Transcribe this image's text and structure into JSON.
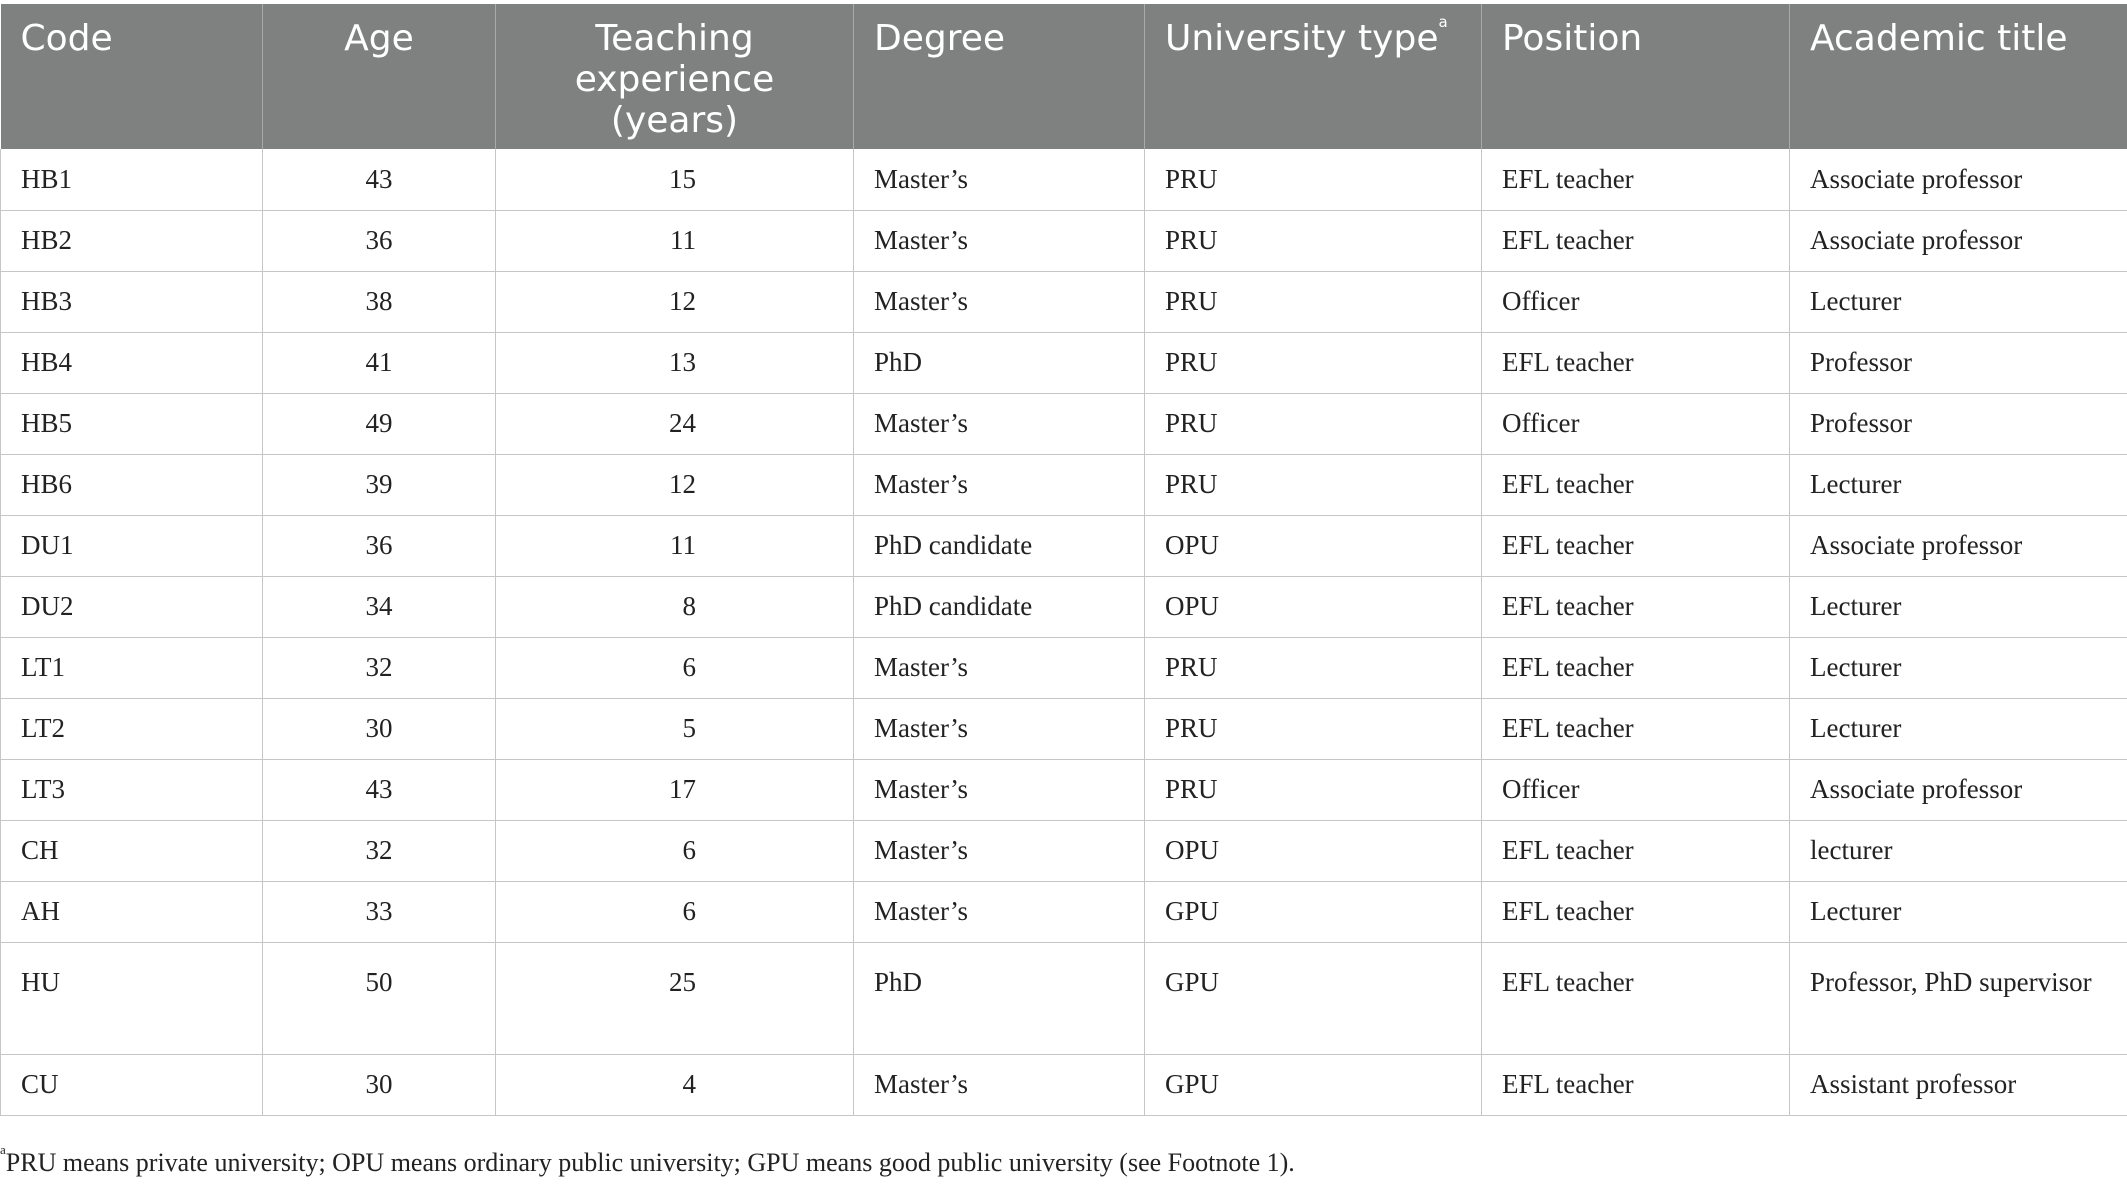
{
  "table": {
    "headers": [
      {
        "label": "Code",
        "sup": ""
      },
      {
        "label": "Age",
        "sup": ""
      },
      {
        "label": "Teaching experience (years)",
        "sup": ""
      },
      {
        "label": "Degree",
        "sup": ""
      },
      {
        "label": "University type",
        "sup": "a"
      },
      {
        "label": "Position",
        "sup": ""
      },
      {
        "label": "Academic title",
        "sup": ""
      }
    ],
    "rows": [
      [
        "HB1",
        "43",
        "15",
        "Master’s",
        "PRU",
        "EFL teacher",
        "Associate professor"
      ],
      [
        "HB2",
        "36",
        "11",
        "Master’s",
        "PRU",
        "EFL teacher",
        "Associate professor"
      ],
      [
        "HB3",
        "38",
        "12",
        "Master’s",
        "PRU",
        "Officer",
        "Lecturer"
      ],
      [
        "HB4",
        "41",
        "13",
        "PhD",
        "PRU",
        "EFL teacher",
        "Professor"
      ],
      [
        "HB5",
        "49",
        "24",
        "Master’s",
        "PRU",
        "Officer",
        "Professor"
      ],
      [
        "HB6",
        "39",
        "12",
        "Master’s",
        "PRU",
        "EFL teacher",
        "Lecturer"
      ],
      [
        "DU1",
        "36",
        "11",
        "PhD candidate",
        "OPU",
        "EFL teacher",
        "Associate professor"
      ],
      [
        "DU2",
        "34",
        "8",
        "PhD candidate",
        "OPU",
        "EFL teacher",
        "Lecturer"
      ],
      [
        "LT1",
        "32",
        "6",
        "Master’s",
        "PRU",
        "EFL teacher",
        "Lecturer"
      ],
      [
        "LT2",
        "30",
        "5",
        "Master’s",
        "PRU",
        "EFL teacher",
        "Lecturer"
      ],
      [
        "LT3",
        "43",
        "17",
        "Master’s",
        "PRU",
        "Officer",
        "Associate professor"
      ],
      [
        "CH",
        "32",
        "6",
        "Master’s",
        "OPU",
        "EFL teacher",
        "lecturer"
      ],
      [
        "AH",
        "33",
        "6",
        "Master’s",
        "GPU",
        "EFL teacher",
        "Lecturer"
      ],
      [
        "HU",
        "50",
        "25",
        "PhD",
        "GPU",
        "EFL teacher",
        "Professor, PhD supervisor"
      ],
      [
        "CU",
        "30",
        "4",
        "Master’s",
        "GPU",
        "EFL teacher",
        "Assistant professor"
      ]
    ]
  },
  "footnote": {
    "marker": "a",
    "text": "PRU means private university; OPU means ordinary public university; GPU means good public university (see Footnote 1)."
  }
}
